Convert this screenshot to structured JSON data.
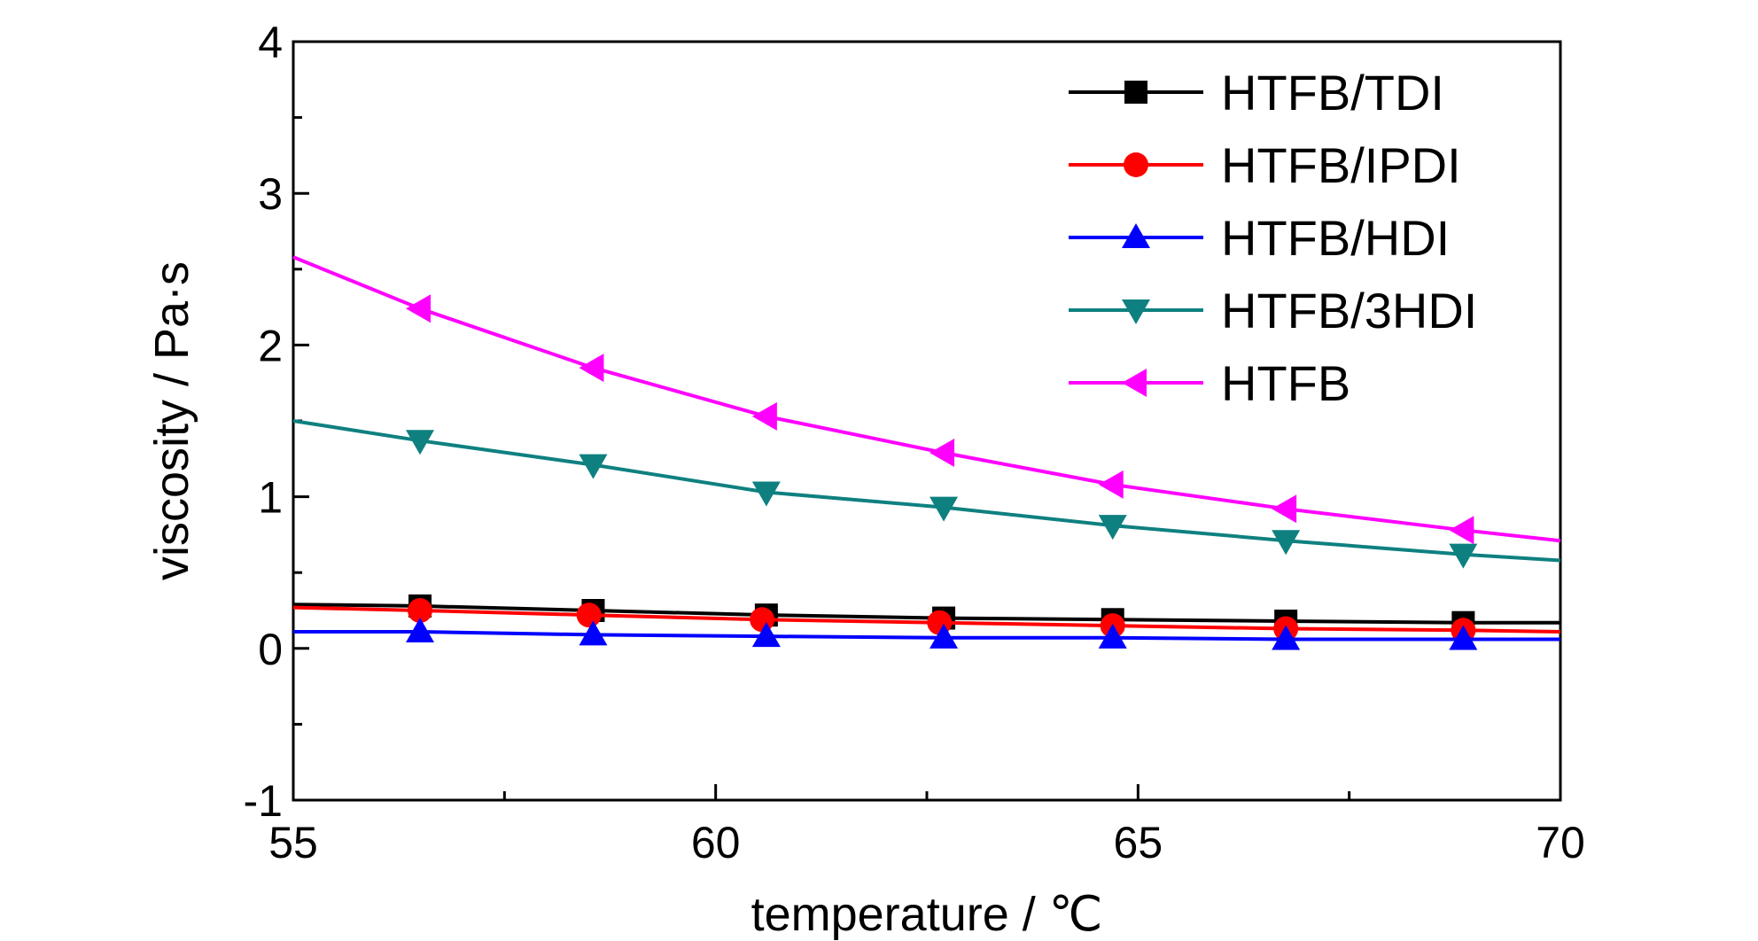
{
  "chart_data": {
    "type": "line",
    "xlabel": "temperature / ℃",
    "ylabel": "viscosity / Pa·s",
    "xlim": [
      55,
      70
    ],
    "ylim": [
      -1,
      4
    ],
    "x_ticks": [
      "55",
      "60",
      "65",
      "70"
    ],
    "y_ticks": [
      "-1",
      "0",
      "1",
      "2",
      "3",
      "4"
    ],
    "grid": false,
    "legend_position": "top-right",
    "series": [
      {
        "name": "HTFB/TDI",
        "color": "#000000",
        "marker": "square",
        "line_x": [
          55,
          70
        ],
        "line_y": [
          0.29,
          0.17
        ],
        "x": [
          56.5,
          58.55,
          60.6,
          62.7,
          64.7,
          66.75,
          68.85
        ],
        "y": [
          0.28,
          0.25,
          0.22,
          0.2,
          0.19,
          0.18,
          0.17
        ]
      },
      {
        "name": "HTFB/IPDI",
        "color": "#ff0000",
        "marker": "circle",
        "line_x": [
          55,
          70
        ],
        "line_y": [
          0.27,
          0.11
        ],
        "x": [
          56.5,
          58.5,
          60.55,
          62.65,
          64.7,
          66.75,
          68.85
        ],
        "y": [
          0.25,
          0.22,
          0.19,
          0.17,
          0.15,
          0.13,
          0.12
        ]
      },
      {
        "name": "HTFB/HDI",
        "color": "#0000ff",
        "marker": "triangle-up",
        "line_x": [
          55,
          70
        ],
        "line_y": [
          0.11,
          0.06
        ],
        "x": [
          56.5,
          58.55,
          60.6,
          62.7,
          64.7,
          66.75,
          68.85
        ],
        "y": [
          0.11,
          0.09,
          0.08,
          0.07,
          0.07,
          0.06,
          0.06
        ]
      },
      {
        "name": "HTFB/3HDI",
        "color": "#0f8080",
        "marker": "triangle-down",
        "line_x": [
          55,
          70
        ],
        "line_y": [
          1.5,
          0.58
        ],
        "x": [
          56.5,
          58.55,
          60.6,
          62.7,
          64.7,
          66.75,
          68.85
        ],
        "y": [
          1.37,
          1.21,
          1.03,
          0.93,
          0.81,
          0.71,
          0.62
        ]
      },
      {
        "name": "HTFB",
        "color": "#ff00ff",
        "marker": "triangle-left",
        "line_x": [
          55,
          70
        ],
        "line_y": [
          2.58,
          0.71
        ],
        "x": [
          56.5,
          58.55,
          60.6,
          62.7,
          64.7,
          66.75,
          68.85
        ],
        "y": [
          2.24,
          1.85,
          1.53,
          1.29,
          1.08,
          0.92,
          0.78
        ]
      }
    ]
  }
}
